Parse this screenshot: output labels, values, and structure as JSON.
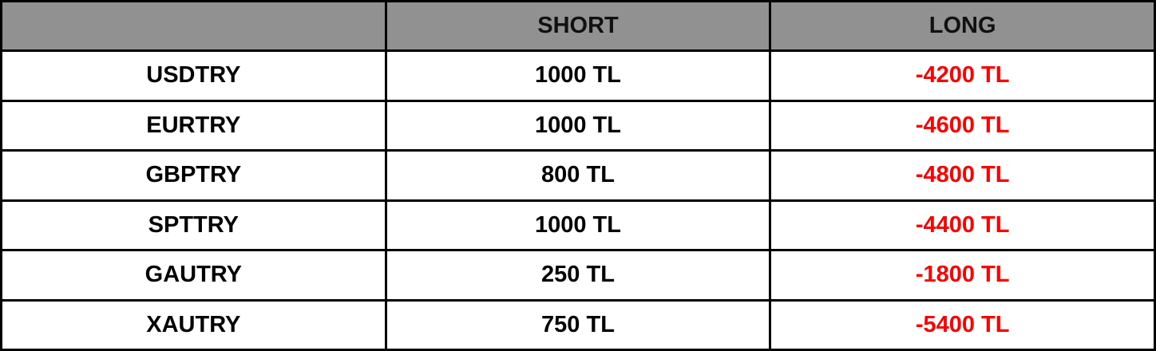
{
  "headers": [
    "",
    "SHORT",
    "LONG"
  ],
  "rows": [
    {
      "symbol": "USDTRY",
      "short": "1000 TL",
      "long": "-4200 TL"
    },
    {
      "symbol": "EURTRY",
      "short": "1000 TL",
      "long": "-4600 TL"
    },
    {
      "symbol": "GBPTRY",
      "short": "800 TL",
      "long": "-4800 TL"
    },
    {
      "symbol": "SPTTRY",
      "short": "1000 TL",
      "long": "-4400 TL"
    },
    {
      "symbol": "GAUTRY",
      "short": "250 TL",
      "long": "-1800 TL"
    },
    {
      "symbol": "XAUTRY",
      "short": "750 TL",
      "long": "-5400 TL"
    }
  ],
  "colors": {
    "header_bg": "#919191",
    "negative": "#ff0000"
  }
}
